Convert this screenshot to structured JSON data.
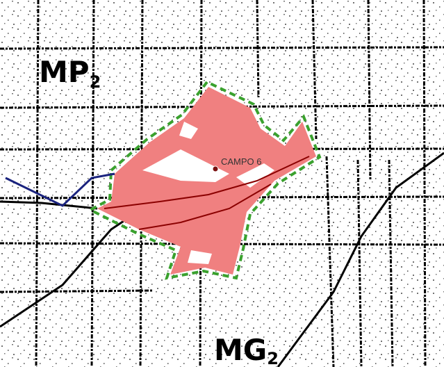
{
  "labels": {
    "region_top_left": {
      "text": "MP",
      "subscript": "2"
    },
    "marker": "CAMPO 6",
    "region_bottom": {
      "text": "MG",
      "subscript": "2"
    }
  }
}
